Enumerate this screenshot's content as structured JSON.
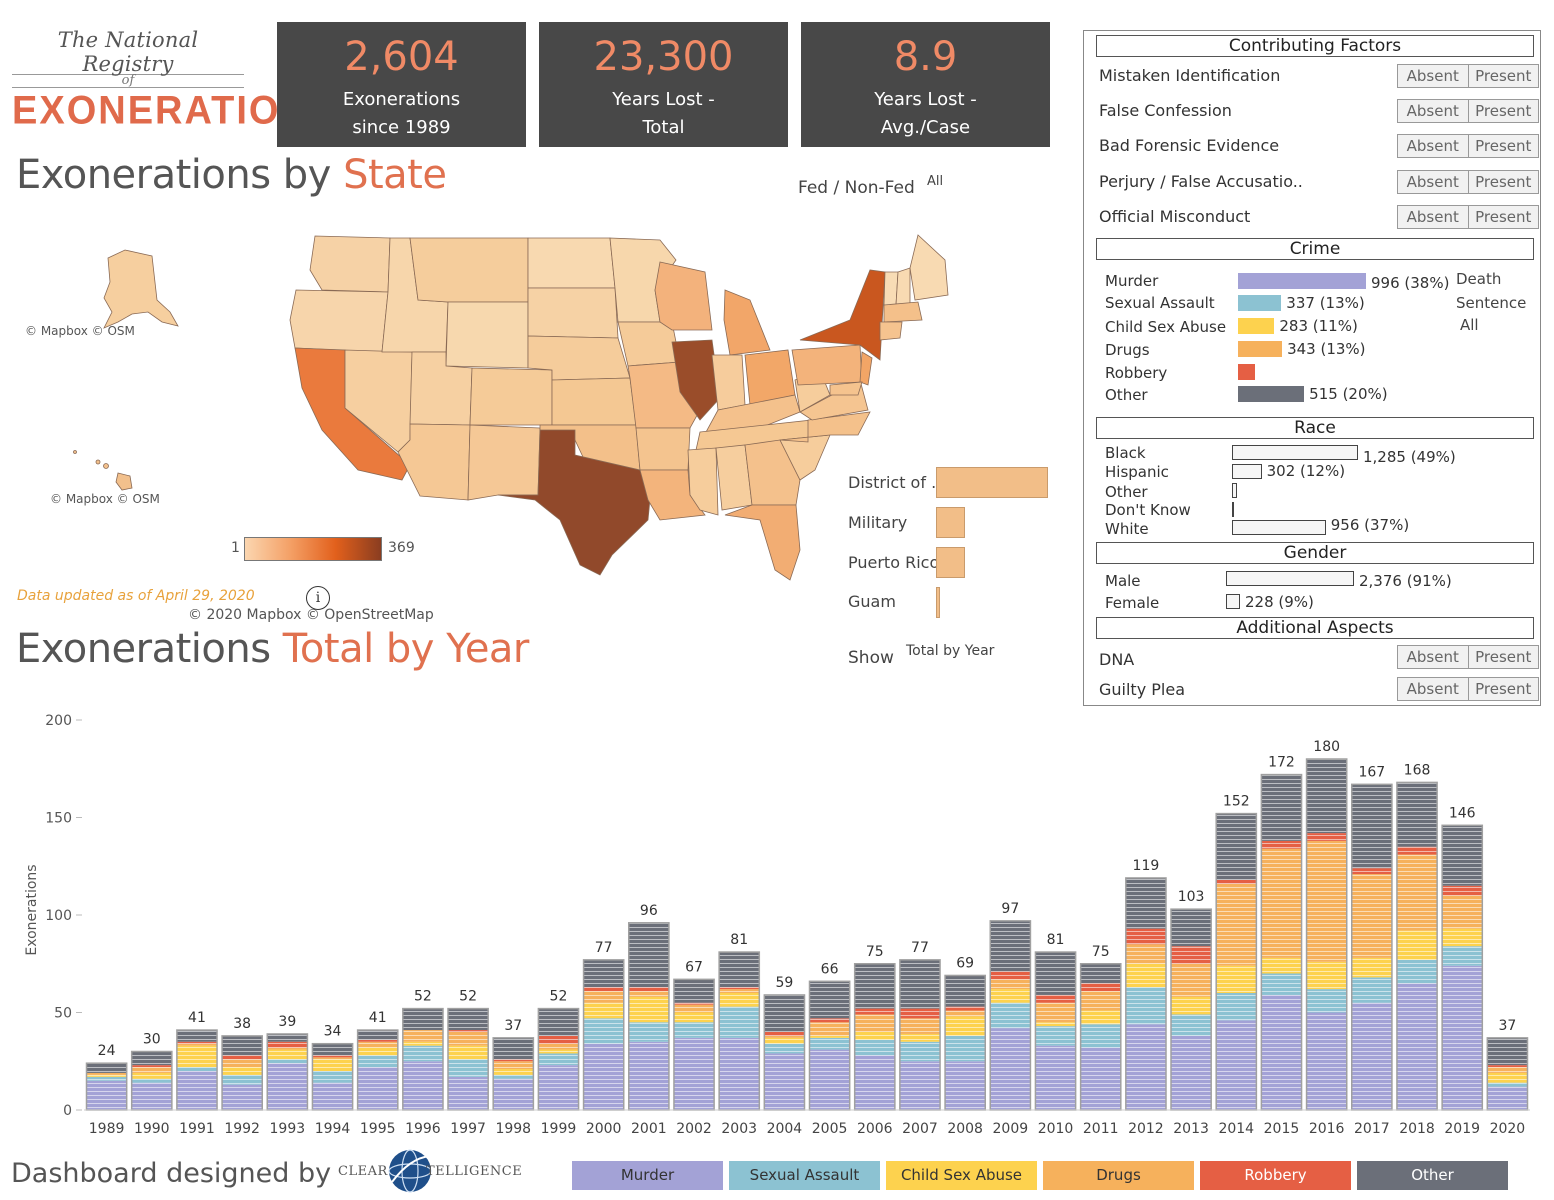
{
  "logo": {
    "line1": "The National Registry",
    "line2": "of",
    "line3": "EXONERATIONS"
  },
  "kpis": [
    {
      "value": "2,604",
      "line1": "Exonerations",
      "line2": "since 1989"
    },
    {
      "value": "23,300",
      "line1": "Years Lost -",
      "line2": "Total"
    },
    {
      "value": "8.9",
      "line1": "Years Lost -",
      "line2": "Avg./Case"
    }
  ],
  "map_section": {
    "title_prefix": "Exonerations by ",
    "title_highlight": "State",
    "fed_label": "Fed / Non-Fed",
    "fed_value": "All",
    "attribution_alaska": "© Mapbox © OSM",
    "attribution_hawaii": "© Mapbox © OSM",
    "attribution_main": "© 2020 Mapbox © OpenStreetMap",
    "updated": "Data updated as of April 29, 2020",
    "info_icon": "i",
    "legend_min": "1",
    "legend_max": "369",
    "territories": [
      {
        "label": "District of ..",
        "value": 61
      },
      {
        "label": "Military",
        "value": 16
      },
      {
        "label": "Puerto Rico",
        "value": 16
      },
      {
        "label": "Guam",
        "value": 2
      }
    ]
  },
  "year_section": {
    "title_prefix": "Exonerations ",
    "title_highlight": "Total by Year",
    "show_label": "Show",
    "show_value": "Total by Year"
  },
  "panel": {
    "contributing_header": "Contributing Factors",
    "factors": [
      {
        "label": "Mistaken Identification"
      },
      {
        "label": "False Confession"
      },
      {
        "label": "Bad Forensic Evidence"
      },
      {
        "label": "Perjury / False Accusatio.."
      },
      {
        "label": "Official Misconduct"
      }
    ],
    "toggle_absent": "Absent",
    "toggle_present": "Present",
    "crime_header": "Crime",
    "crimes": [
      {
        "label": "Murder",
        "value": "996 (38%)",
        "count": 996,
        "color": "#a3a2d6"
      },
      {
        "label": "Sexual Assault",
        "value": "337 (13%)",
        "count": 337,
        "color": "#8cc2d2"
      },
      {
        "label": "Child Sex Abuse",
        "value": "283 (11%)",
        "count": 283,
        "color": "#fdd24e"
      },
      {
        "label": "Drugs",
        "value": "343 (13%)",
        "count": 343,
        "color": "#f6b15c"
      },
      {
        "label": "Robbery",
        "value": "",
        "count": 130,
        "color": "#e55f44"
      },
      {
        "label": "Other",
        "value": "515 (20%)",
        "count": 515,
        "color": "#6b6f79"
      }
    ],
    "death_sentence": {
      "line1": "Death",
      "line2": "Sentence",
      "line3": "All"
    },
    "race_header": "Race",
    "races": [
      {
        "label": "Black",
        "value": "1,285 (49%)",
        "count": 1285
      },
      {
        "label": "Hispanic",
        "value": "302 (12%)",
        "count": 302
      },
      {
        "label": "Other",
        "value": "",
        "count": 50
      },
      {
        "label": "Don't Know",
        "value": "",
        "count": 10
      },
      {
        "label": "White",
        "value": "956 (37%)",
        "count": 956
      }
    ],
    "gender_header": "Gender",
    "genders": [
      {
        "label": "Male",
        "value": "2,376 (91%)",
        "count": 2376
      },
      {
        "label": "Female",
        "value": "228 (9%)",
        "count": 228
      }
    ],
    "additional_header": "Additional Aspects",
    "aspects": [
      {
        "label": "DNA"
      },
      {
        "label": "Guilty Plea"
      }
    ]
  },
  "chart_data": {
    "type": "bar",
    "stacked": true,
    "title": "Exonerations Total by Year",
    "xlabel": "",
    "ylabel": "Exonerations",
    "ylim": [
      0,
      200
    ],
    "yticks": [
      0,
      50,
      100,
      150,
      200
    ],
    "categories": [
      "1989",
      "1990",
      "1991",
      "1992",
      "1993",
      "1994",
      "1995",
      "1996",
      "1997",
      "1998",
      "1999",
      "2000",
      "2001",
      "2002",
      "2003",
      "2004",
      "2005",
      "2006",
      "2007",
      "2008",
      "2009",
      "2010",
      "2011",
      "2012",
      "2013",
      "2014",
      "2015",
      "2016",
      "2017",
      "2018",
      "2019",
      "2020"
    ],
    "totals": [
      24,
      30,
      41,
      38,
      39,
      34,
      41,
      52,
      52,
      37,
      52,
      77,
      96,
      67,
      81,
      59,
      66,
      75,
      77,
      69,
      97,
      81,
      75,
      119,
      103,
      152,
      172,
      180,
      167,
      168,
      146,
      37
    ],
    "series": [
      {
        "name": "Murder",
        "color": "#a3a2d6",
        "values": [
          15,
          14,
          20,
          13,
          24,
          14,
          22,
          25,
          17,
          16,
          23,
          34,
          35,
          37,
          37,
          29,
          31,
          28,
          25,
          25,
          42,
          33,
          32,
          44,
          38,
          46,
          59,
          50,
          55,
          65,
          74,
          12
        ]
      },
      {
        "name": "Sexual Assault",
        "color": "#8cc2d2",
        "values": [
          2,
          2,
          2,
          5,
          2,
          6,
          6,
          8,
          9,
          2,
          6,
          13,
          10,
          8,
          16,
          5,
          6,
          8,
          10,
          13,
          13,
          10,
          12,
          19,
          11,
          14,
          11,
          12,
          13,
          12,
          10,
          2
        ]
      },
      {
        "name": "Child Sex Abuse",
        "color": "#fdd24e",
        "values": [
          1,
          3,
          11,
          4,
          5,
          6,
          4,
          2,
          7,
          3,
          2,
          8,
          13,
          5,
          7,
          3,
          1,
          4,
          4,
          10,
          7,
          2,
          7,
          12,
          9,
          14,
          8,
          14,
          10,
          15,
          9,
          5
        ]
      },
      {
        "name": "Drugs",
        "color": "#f6b15c",
        "values": [
          1,
          3,
          1,
          4,
          1,
          1,
          3,
          6,
          7,
          4,
          3,
          6,
          3,
          4,
          2,
          1,
          7,
          9,
          8,
          3,
          5,
          10,
          10,
          10,
          17,
          42,
          56,
          62,
          43,
          39,
          17,
          3
        ]
      },
      {
        "name": "Robbery",
        "color": "#e55f44",
        "values": [
          0,
          1,
          1,
          2,
          3,
          1,
          1,
          0,
          1,
          1,
          4,
          2,
          2,
          1,
          1,
          2,
          2,
          3,
          5,
          2,
          4,
          4,
          4,
          8,
          9,
          2,
          4,
          4,
          3,
          4,
          5,
          1
        ]
      },
      {
        "name": "Other",
        "color": "#6b6f79",
        "values": [
          5,
          7,
          6,
          10,
          4,
          6,
          5,
          11,
          11,
          11,
          14,
          14,
          33,
          12,
          18,
          19,
          19,
          23,
          25,
          16,
          26,
          22,
          10,
          26,
          19,
          34,
          34,
          38,
          43,
          33,
          31,
          14
        ]
      }
    ]
  },
  "footer": {
    "text": "Dashboard designed by",
    "logo_left": "CLEAR",
    "logo_right": "TELLIGENCE"
  }
}
